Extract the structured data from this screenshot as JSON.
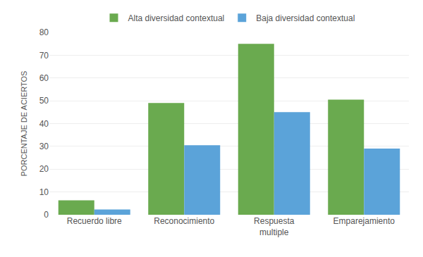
{
  "chart_data": {
    "type": "bar",
    "categories": [
      "Recuerdo libre",
      "Reconocimiento",
      "Respuesta\nmultiple",
      "Emparejamiento"
    ],
    "series": [
      {
        "name": "Alta diversidad contextual",
        "color": "#6aaa4f",
        "values": [
          6.3,
          49.0,
          75.0,
          50.5
        ]
      },
      {
        "name": "Baja diversidad contextual",
        "color": "#5ba3d9",
        "values": [
          2.3,
          30.5,
          45.0,
          29.0
        ]
      }
    ],
    "ylabel": "PORCENTAJE DE ACIERTOS",
    "ylim": [
      0,
      80
    ],
    "yticks": [
      0,
      10,
      20,
      30,
      40,
      50,
      60,
      70,
      80
    ],
    "grid": true,
    "legend": "upper center"
  }
}
